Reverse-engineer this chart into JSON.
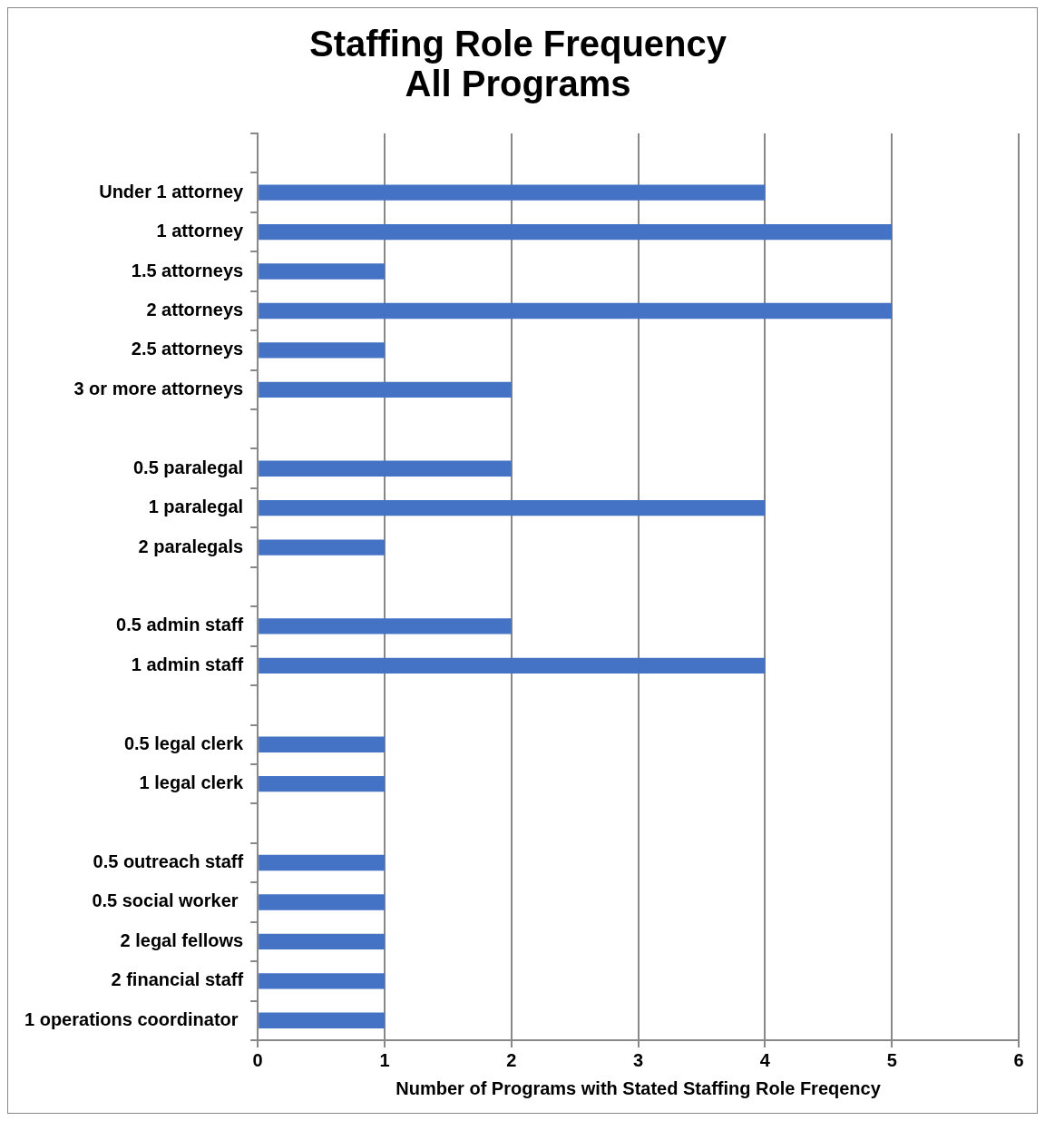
{
  "chart_data": {
    "type": "bar",
    "orientation": "horizontal",
    "title": "Staffing Role Frequency\nAll Programs",
    "xlabel": "Number of Programs with Stated Staffing Role Freqency",
    "categories": [
      null,
      "Under 1 attorney",
      "1 attorney",
      "1.5 attorneys",
      "2 attorneys",
      "2.5 attorneys",
      "3 or more attorneys",
      null,
      "0.5 paralegal",
      "1 paralegal",
      "2 paralegals",
      null,
      "0.5 admin staff",
      "1 admin staff",
      null,
      "0.5 legal clerk",
      "1 legal clerk",
      null,
      "0.5 outreach staff",
      "0.5 social worker ",
      "2 legal fellows",
      "2 financial staff",
      "1 operations coordinator "
    ],
    "values": [
      null,
      4,
      5,
      1,
      5,
      1,
      2,
      null,
      2,
      4,
      1,
      null,
      2,
      4,
      null,
      1,
      1,
      null,
      1,
      1,
      1,
      1,
      1
    ],
    "color": "#4472c4",
    "xlim": [
      0,
      6
    ],
    "xticks": [
      0,
      1,
      2,
      3,
      4,
      5,
      6
    ],
    "grid": "x",
    "legend": false
  }
}
